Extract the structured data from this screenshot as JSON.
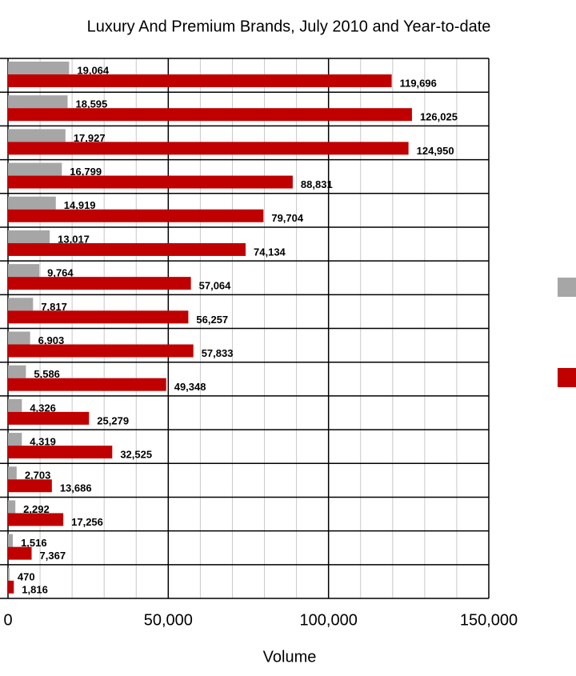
{
  "chart_data": {
    "type": "bar",
    "orientation": "horizontal",
    "title": "Luxury And Premium Brands, July 2010 and Year-to-date",
    "x_label": "Volume",
    "categories": [
      null,
      null,
      null,
      null,
      null,
      null,
      null,
      null,
      null,
      null,
      null,
      null,
      null,
      null,
      null,
      null
    ],
    "series": [
      {
        "color": "#a6a6a6",
        "values": [
          19064,
          18595,
          17927,
          16799,
          14919,
          13017,
          9764,
          7817,
          6903,
          5586,
          4326,
          4319,
          2703,
          2292,
          1516,
          470
        ],
        "value_labels": [
          "19,064",
          "18,595",
          "17,927",
          "16,799",
          "14,919",
          "13,017",
          "9,764",
          "7,817",
          "6,903",
          "5,586",
          "4,326",
          "4,319",
          "2,703",
          "2,292",
          "1,516",
          "470"
        ]
      },
      {
        "color": "#c00000",
        "values": [
          119696,
          126025,
          124950,
          88831,
          79704,
          74134,
          57064,
          56257,
          57833,
          49348,
          25279,
          32525,
          13686,
          17256,
          7367,
          1816
        ],
        "value_labels": [
          "119,696",
          "126,025",
          "124,950",
          "88,831",
          "79,704",
          "74,134",
          "57,064",
          "56,257",
          "57,833",
          "49,348",
          "25,279",
          "32,525",
          "13,686",
          "17,256",
          "7,367",
          "1,816"
        ]
      }
    ],
    "xlim": [
      0,
      150000
    ],
    "xticks": [
      0,
      {
        "value": 50000,
        "label": "50,000"
      },
      {
        "value": 100000,
        "label": "100,000"
      },
      {
        "value": 150000,
        "label": "150,000"
      }
    ],
    "minor_xticks": [
      10000,
      20000,
      30000,
      40000,
      60000,
      70000,
      80000,
      90000,
      110000,
      120000,
      130000,
      140000
    ],
    "grid": true,
    "legend": "right"
  }
}
